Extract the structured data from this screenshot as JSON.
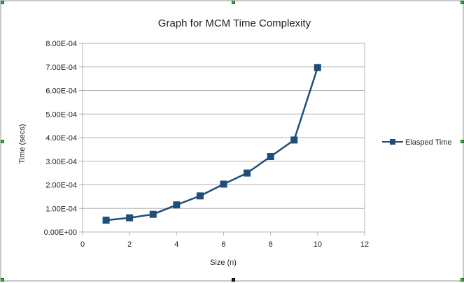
{
  "chart_data": {
    "type": "line",
    "title": "Graph for MCM Time Complexity",
    "xlabel": "Size (n)",
    "ylabel": "Time (secs)",
    "xlim": [
      0,
      12
    ],
    "ylim": [
      0,
      0.0008
    ],
    "x_ticks": [
      "0",
      "2",
      "4",
      "6",
      "8",
      "10",
      "12"
    ],
    "x_tick_values": [
      0,
      2,
      4,
      6,
      8,
      10,
      12
    ],
    "y_ticks": [
      "0.00E+00",
      "1.00E-04",
      "2.00E-04",
      "3.00E-04",
      "4.00E-04",
      "5.00E-04",
      "6.00E-04",
      "7.00E-04",
      "8.00E-04"
    ],
    "y_tick_values": [
      0,
      0.0001,
      0.0002,
      0.0003,
      0.0004,
      0.0005,
      0.0006,
      0.0007,
      0.0008
    ],
    "grid": "horizontal",
    "legend_position": "right",
    "series": [
      {
        "name": "Elasped Time",
        "color": "#1f4e79",
        "x": [
          1,
          2,
          3,
          4,
          5,
          6,
          7,
          8,
          9,
          10
        ],
        "y": [
          5e-05,
          6e-05,
          7.5e-05,
          0.000115,
          0.000153,
          0.000203,
          0.00025,
          0.00032,
          0.00039,
          0.000697
        ]
      }
    ]
  }
}
